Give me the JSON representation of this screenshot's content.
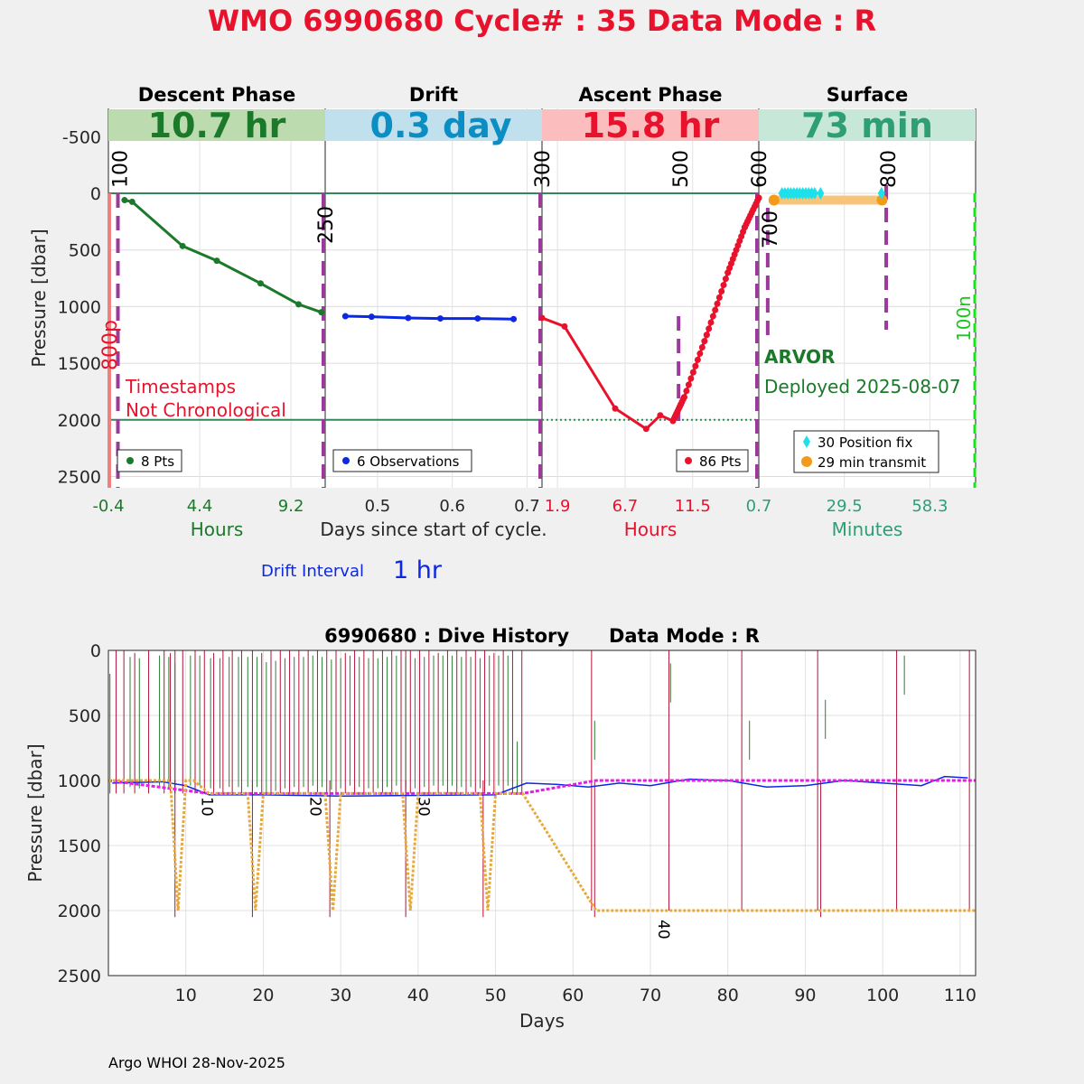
{
  "title": "WMO 6990680   Cycle# : 35   Data Mode : R",
  "footer": "Argo WHOI 28-Nov-2025",
  "colors": {
    "title": "#e8122c",
    "descent": "#1a7a2a",
    "drift": "#0a28e6",
    "ascent": "#e8122c",
    "surface_text": "#2e9e75",
    "divider": "#9b3a9b",
    "ground": "#2e8b57",
    "fix": "#1ee0ea",
    "transmit": "#f29b1b",
    "history_pressure": "#e7a93a",
    "park_target": "#e31fe3"
  },
  "chart_data": [
    {
      "type": "line",
      "panel": "descent",
      "header": "Descent Phase",
      "duration_label": "10.7 hr",
      "xlabel": "Hours",
      "xticks": [
        "-0.4",
        "4.4",
        "9.2"
      ],
      "xlim": [
        -0.4,
        11.0
      ],
      "ylabel": "Pressure [dbar]",
      "yticks": [
        "-500",
        "0",
        "500",
        "1000",
        "1500",
        "2000",
        "2500"
      ],
      "ylim": [
        -750,
        2600
      ],
      "warning": [
        "Timestamps",
        "Not Chronological"
      ],
      "side_label": "800p",
      "legend": "8 Pts",
      "series": [
        {
          "name": "descent",
          "x": [
            0.45,
            0.85,
            3.5,
            5.3,
            7.6,
            9.6,
            10.8
          ],
          "y": [
            60,
            75,
            465,
            595,
            795,
            980,
            1050
          ]
        }
      ],
      "markers": [
        {
          "label": "100",
          "x": 0.1
        },
        {
          "label": "250",
          "x": 11.0
        }
      ]
    },
    {
      "type": "line",
      "panel": "drift",
      "header": "Drift",
      "duration_label": "0.3 day",
      "xlabel": "Days since start of cycle.",
      "xticks": [
        "0.5",
        "0.6",
        "0.7"
      ],
      "xlim": [
        0.43,
        0.72
      ],
      "legend": "6 Observations",
      "interval_label": "Drift Interval",
      "interval_value": "1 hr",
      "series": [
        {
          "name": "drift",
          "x": [
            0.457,
            0.492,
            0.541,
            0.584,
            0.634,
            0.682
          ],
          "y": [
            1085,
            1090,
            1100,
            1105,
            1105,
            1110
          ]
        }
      ],
      "markers": [
        {
          "label": "300",
          "x": 0.72
        }
      ]
    },
    {
      "type": "line",
      "panel": "ascent",
      "header": "Ascent Phase",
      "duration_label": "15.8 hr",
      "xlabel": "Hours",
      "xticks": [
        "1.9",
        "6.7",
        "11.5"
      ],
      "xlim": [
        0.8,
        16.2
      ],
      "legend": "86 Pts",
      "series": [
        {
          "name": "ascent",
          "x": [
            0.8,
            2.4,
            6.0,
            8.2,
            9.2,
            10.1,
            10.9,
            12.5,
            14.0,
            15.2,
            16.2
          ],
          "y": [
            1100,
            1175,
            1900,
            2080,
            1960,
            2010,
            1800,
            1250,
            700,
            300,
            40
          ]
        }
      ],
      "markers": [
        {
          "label": "500",
          "x": 10.5
        },
        {
          "label": "600",
          "x": 16.2
        }
      ]
    },
    {
      "type": "scatter",
      "panel": "surface",
      "header": "Surface",
      "duration_label": "73 min",
      "xlabel": "Minutes",
      "xticks": [
        "0.7",
        "29.5",
        "58.3"
      ],
      "xlim": [
        0.7,
        73.7
      ],
      "float_type": "ARVOR",
      "deployed": "Deployed 2025-08-07",
      "side_label": "100n",
      "legend": [
        "30 Position fix",
        "29 min transmit"
      ],
      "series": [
        {
          "name": "Position fix",
          "x": [
            8.5,
            9.5,
            10.5,
            11.5,
            12.5,
            13.5,
            14.5,
            15.5,
            16.5,
            17.5,
            18.5,
            19.5,
            21.5,
            42.0
          ],
          "y": [
            -40,
            -40,
            -40,
            -40,
            -40,
            -40,
            -40,
            -40,
            -40,
            -40,
            -40,
            -40,
            -40,
            -40
          ]
        },
        {
          "name": "transmit",
          "x": [
            5.8,
            42.2
          ],
          "y": [
            60,
            60
          ]
        }
      ],
      "markers": [
        {
          "label": "700",
          "x": 3.7
        },
        {
          "label": "800",
          "x": 43.6
        }
      ]
    },
    {
      "type": "line",
      "panel": "history",
      "title": "6990680 : Dive History      Data Mode : R",
      "xlabel": "Days",
      "ylabel": "Pressure [dbar]",
      "xticks": [
        "10",
        "20",
        "30",
        "40",
        "50",
        "60",
        "70",
        "80",
        "90",
        "100",
        "110"
      ],
      "yticks": [
        "0",
        "500",
        "1000",
        "1500",
        "2000",
        "2500"
      ],
      "xlim": [
        0,
        112
      ],
      "ylim": [
        0,
        2500
      ],
      "cycle_labels": [
        {
          "label": "10",
          "x": 13
        },
        {
          "label": "20",
          "x": 27
        },
        {
          "label": "30",
          "x": 41
        },
        {
          "label": "40",
          "x": 72
        }
      ],
      "series": [
        {
          "name": "park pressure",
          "x": [
            0,
            7,
            8,
            9,
            10,
            11,
            12,
            13,
            17,
            18,
            19,
            20,
            21,
            27,
            28,
            29,
            30,
            31,
            37,
            38,
            39,
            40,
            41,
            47,
            48,
            49,
            50,
            51,
            53.5,
            63,
            112
          ],
          "y": [
            1000,
            1000,
            1000,
            2000,
            1000,
            1000,
            1050,
            1100,
            1100,
            1100,
            2000,
            1100,
            1100,
            1100,
            1100,
            2000,
            1100,
            1100,
            1100,
            1100,
            2000,
            1100,
            1100,
            1100,
            1100,
            2000,
            1100,
            1100,
            1100,
            2000,
            2000
          ]
        },
        {
          "name": "park target",
          "x": [
            0,
            13,
            53.5,
            63,
            112
          ],
          "y": [
            1000,
            1100,
            1100,
            1000,
            1000
          ],
          "color": "#e31fe3"
        },
        {
          "name": "measured drift",
          "x": [
            0.5,
            7,
            10,
            13,
            20,
            30,
            40,
            50,
            54,
            58,
            62,
            66,
            70,
            75,
            80,
            85,
            90,
            95,
            100,
            105,
            108,
            111
          ],
          "y": [
            1020,
            1010,
            1040,
            1110,
            1110,
            1120,
            1115,
            1110,
            1020,
            1030,
            1050,
            1020,
            1040,
            990,
            1000,
            1050,
            1040,
            1000,
            1020,
            1040,
            970,
            980
          ],
          "color": "#0a28e6"
        },
        {
          "name": "descent",
          "x": [
            0.2,
            2.8,
            4,
            6.6,
            7.8,
            8.6,
            10.6,
            11.8,
            13.2,
            14.4,
            15.6,
            16.8,
            18,
            19.2,
            20.4,
            21.6,
            22.8,
            24,
            25.2,
            26.4,
            27.6,
            28.8,
            30,
            31.2,
            32.4,
            33.6,
            34.8,
            36,
            37.2,
            38.4,
            39.6,
            40.8,
            42,
            43.2,
            44.4,
            45.6,
            46.8,
            48,
            49.2,
            50.4,
            51.6,
            52.8,
            62.8,
            72.6,
            82.8,
            92.6,
            102.8,
            111.8
          ],
          "y": [
            180,
            50,
            60,
            40,
            50,
            100,
            40,
            40,
            60,
            60,
            50,
            50,
            50,
            50,
            90,
            80,
            60,
            50,
            50,
            40,
            50,
            70,
            60,
            40,
            50,
            60,
            60,
            50,
            40,
            50,
            60,
            50,
            40,
            40,
            40,
            50,
            50,
            60,
            40,
            40,
            40,
            700,
            540,
            100,
            540,
            380,
            40,
            1000
          ],
          "color": "#2e7d32"
        },
        {
          "name": "ascent",
          "x": [
            1.0,
            2.0,
            3.4,
            5.2,
            7.2,
            8.0,
            8.6,
            9.6,
            11.2,
            12.4,
            13.6,
            14.8,
            16.0,
            17.2,
            18.6,
            19.8,
            21.0,
            22.2,
            23.4,
            24.6,
            25.8,
            27.0,
            28.2,
            29.4,
            30.6,
            31.8,
            33.0,
            34.2,
            35.4,
            36.6,
            37.8,
            38.4,
            39.0,
            40.2,
            41.4,
            42.6,
            43.8,
            45.0,
            46.2,
            47.4,
            48.6,
            49.8,
            51.0,
            52.2,
            53.4,
            62.4,
            72.4,
            81.8,
            91.6,
            101.8,
            111.2
          ],
          "y": [
            0,
            0,
            20,
            0,
            0,
            20,
            0,
            0,
            0,
            0,
            20,
            0,
            0,
            0,
            0,
            20,
            0,
            0,
            0,
            0,
            0,
            0,
            0,
            0,
            20,
            0,
            0,
            0,
            0,
            0,
            0,
            0,
            0,
            0,
            0,
            20,
            0,
            0,
            0,
            0,
            0,
            20,
            0,
            0,
            0,
            0,
            0,
            0,
            0,
            0,
            0
          ],
          "color": "#b3123a"
        }
      ]
    }
  ]
}
